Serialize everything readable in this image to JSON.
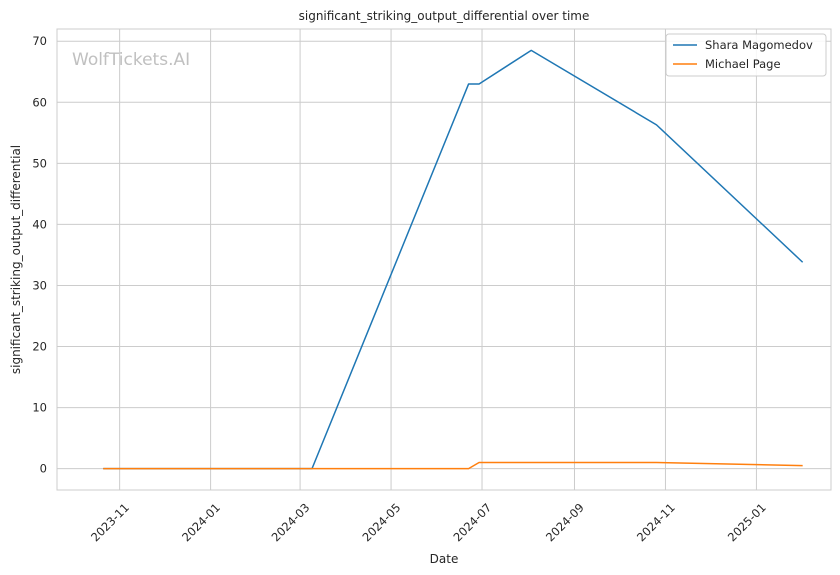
{
  "chart_data": {
    "type": "line",
    "title": "significant_striking_output_differential over time",
    "xlabel": "Date",
    "ylabel": "significant_striking_output_differential",
    "watermark": "WolfTickets.AI",
    "x_type": "date",
    "xlim": [
      "2023-09-20",
      "2025-02-20"
    ],
    "ylim": [
      -3.5,
      72
    ],
    "x_ticks": [
      "2023-11-01",
      "2024-01-01",
      "2024-03-01",
      "2024-05-01",
      "2024-07-01",
      "2024-09-01",
      "2024-11-01",
      "2025-01-01"
    ],
    "x_tick_labels": [
      "2023-11",
      "2024-01",
      "2024-03",
      "2024-05",
      "2024-07",
      "2024-09",
      "2024-11",
      "2025-01"
    ],
    "y_ticks": [
      0,
      10,
      20,
      30,
      40,
      50,
      60,
      70
    ],
    "grid": true,
    "legend_position": "top-right",
    "series": [
      {
        "name": "Shara Magomedov",
        "color": "#1f77b4",
        "points": [
          {
            "x": "2023-10-21",
            "y": 0
          },
          {
            "x": "2024-03-09",
            "y": 0
          },
          {
            "x": "2024-06-22",
            "y": 63
          },
          {
            "x": "2024-06-29",
            "y": 63
          },
          {
            "x": "2024-08-03",
            "y": 68.5
          },
          {
            "x": "2024-10-26",
            "y": 56.3
          },
          {
            "x": "2025-02-01",
            "y": 33.8
          }
        ]
      },
      {
        "name": "Michael Page",
        "color": "#ff7f0e",
        "points": [
          {
            "x": "2023-10-21",
            "y": 0
          },
          {
            "x": "2024-03-09",
            "y": 0
          },
          {
            "x": "2024-06-22",
            "y": 0
          },
          {
            "x": "2024-06-29",
            "y": 1
          },
          {
            "x": "2024-08-03",
            "y": 1
          },
          {
            "x": "2024-10-26",
            "y": 1
          },
          {
            "x": "2025-02-01",
            "y": 0.5
          }
        ]
      }
    ]
  }
}
